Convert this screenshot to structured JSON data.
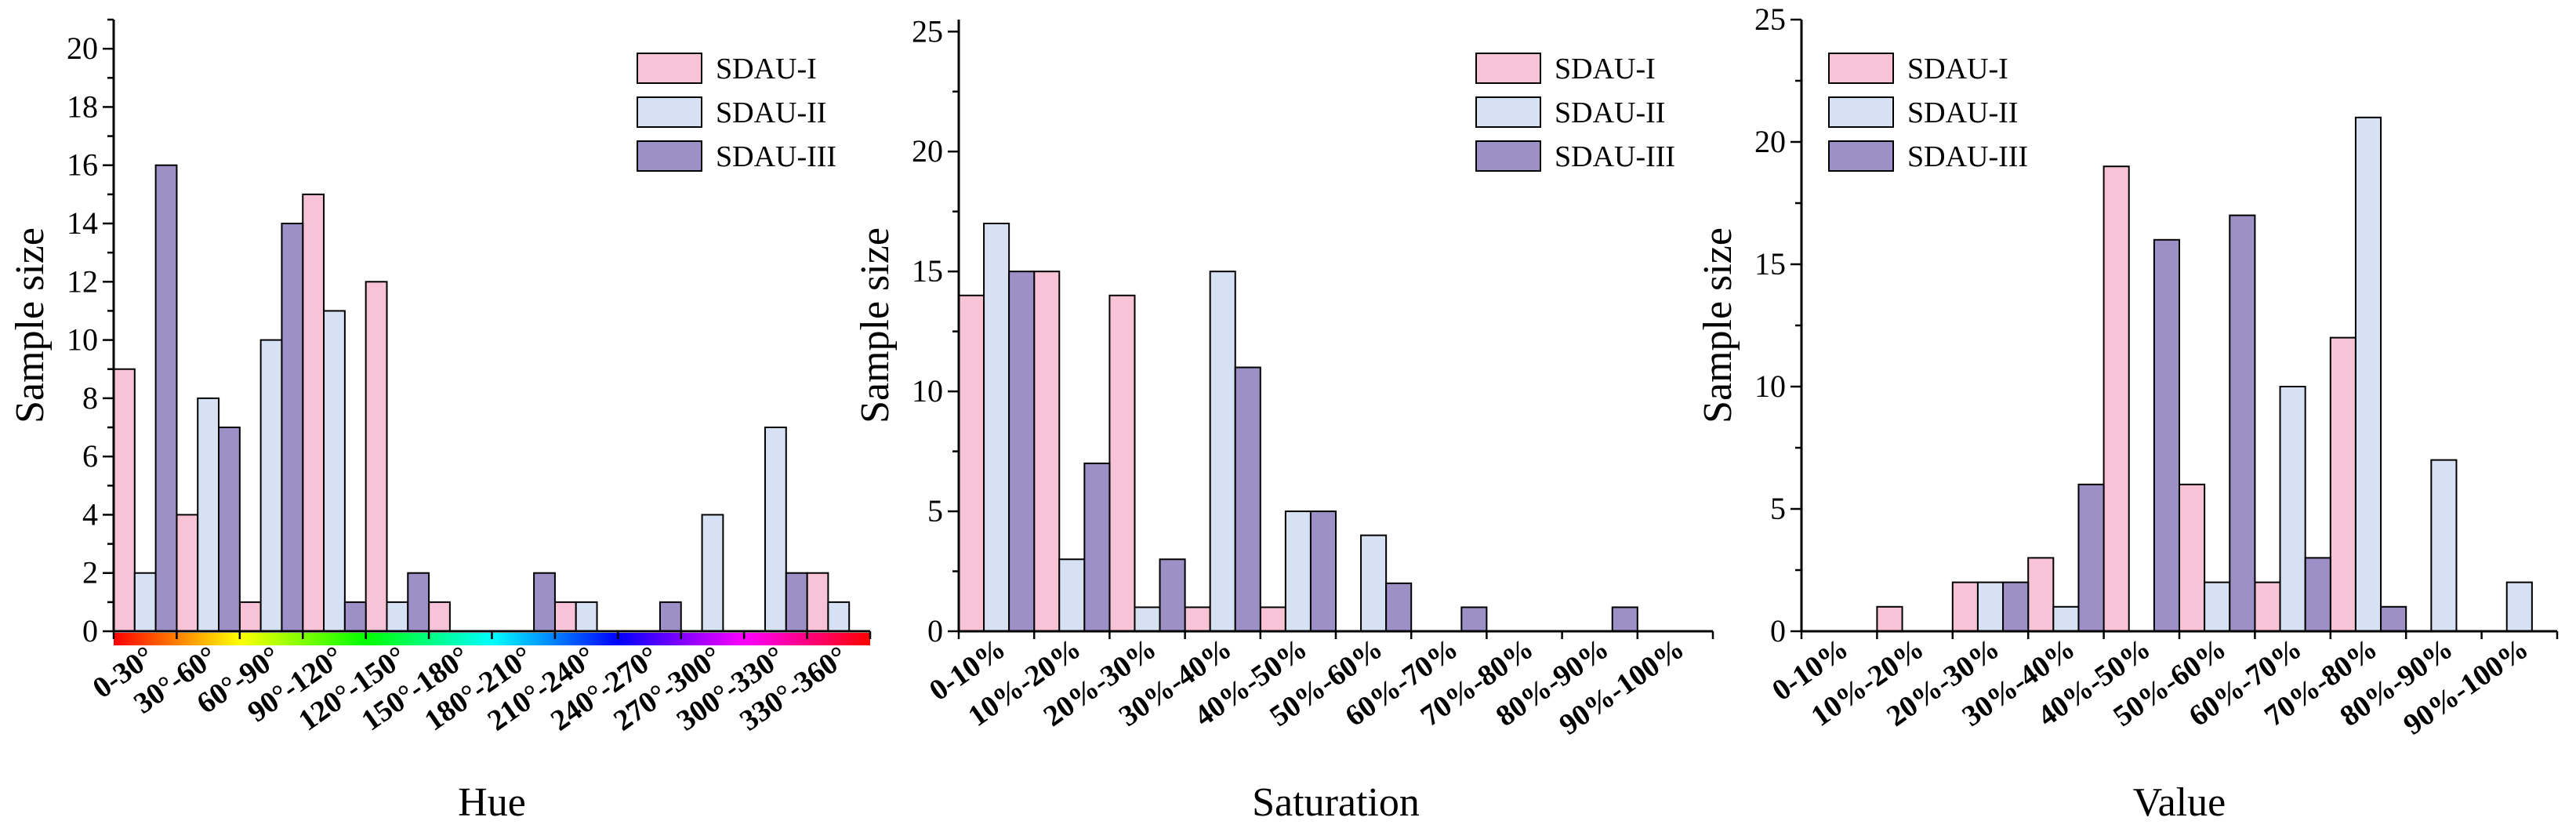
{
  "colors": {
    "SDAU-I": "#f8c3d6",
    "SDAU-II": "#d6e2f3",
    "SDAU-III": "#9d90c7"
  },
  "chart_data": [
    {
      "type": "bar",
      "title": "",
      "xlabel": "Hue",
      "ylabel": "Sample size",
      "ylim": [
        0,
        21
      ],
      "yticks": [
        0,
        2,
        4,
        6,
        8,
        10,
        12,
        14,
        16,
        18,
        20
      ],
      "hue_strip": true,
      "legend_position": "top-right",
      "categories": [
        "0-30°",
        "30°-60°",
        "60°-90°",
        "90°-120°",
        "120°-150°",
        "150°-180°",
        "180°-210°",
        "210°-240°",
        "240°-270°",
        "270°-300°",
        "300°-330°",
        "330°-360°"
      ],
      "series": [
        {
          "name": "SDAU-I",
          "values": [
            9,
            4,
            1,
            15,
            12,
            1,
            0,
            1,
            0,
            0,
            0,
            2
          ]
        },
        {
          "name": "SDAU-II",
          "values": [
            2,
            8,
            10,
            11,
            1,
            0,
            0,
            1,
            0,
            4,
            7,
            1
          ]
        },
        {
          "name": "SDAU-III",
          "values": [
            16,
            7,
            14,
            1,
            2,
            0,
            2,
            0,
            1,
            0,
            2,
            0
          ]
        }
      ]
    },
    {
      "type": "bar",
      "title": "",
      "xlabel": "Saturation",
      "ylabel": "Sample size",
      "ylim": [
        0,
        25.5
      ],
      "yticks": [
        0,
        5,
        10,
        15,
        20,
        25
      ],
      "hue_strip": false,
      "legend_position": "top-right",
      "categories": [
        "0-10%",
        "10%-20%",
        "20%-30%",
        "30%-40%",
        "40%-50%",
        "50%-60%",
        "60%-70%",
        "70%-80%",
        "80%-90%",
        "90%-100%"
      ],
      "series": [
        {
          "name": "SDAU-I",
          "values": [
            14,
            15,
            14,
            1,
            1,
            0,
            0,
            0,
            0,
            0
          ]
        },
        {
          "name": "SDAU-II",
          "values": [
            17,
            3,
            1,
            15,
            5,
            4,
            0,
            0,
            0,
            0
          ]
        },
        {
          "name": "SDAU-III",
          "values": [
            15,
            7,
            3,
            11,
            5,
            2,
            1,
            0,
            1,
            0
          ]
        }
      ]
    },
    {
      "type": "bar",
      "title": "",
      "xlabel": "Value",
      "ylabel": "Sample size",
      "ylim": [
        0,
        25
      ],
      "yticks": [
        0,
        5,
        10,
        15,
        20,
        25
      ],
      "hue_strip": false,
      "legend_position": "top-left",
      "categories": [
        "0-10%",
        "10%-20%",
        "20%-30%",
        "30%-40%",
        "40%-50%",
        "50%-60%",
        "60%-70%",
        "70%-80%",
        "80%-90%",
        "90%-100%"
      ],
      "series": [
        {
          "name": "SDAU-I",
          "values": [
            0,
            1,
            2,
            3,
            19,
            6,
            2,
            12,
            0,
            0
          ]
        },
        {
          "name": "SDAU-II",
          "values": [
            0,
            0,
            2,
            1,
            0,
            2,
            10,
            21,
            7,
            2
          ]
        },
        {
          "name": "SDAU-III",
          "values": [
            0,
            0,
            2,
            6,
            16,
            17,
            3,
            1,
            0,
            0
          ]
        }
      ]
    }
  ]
}
